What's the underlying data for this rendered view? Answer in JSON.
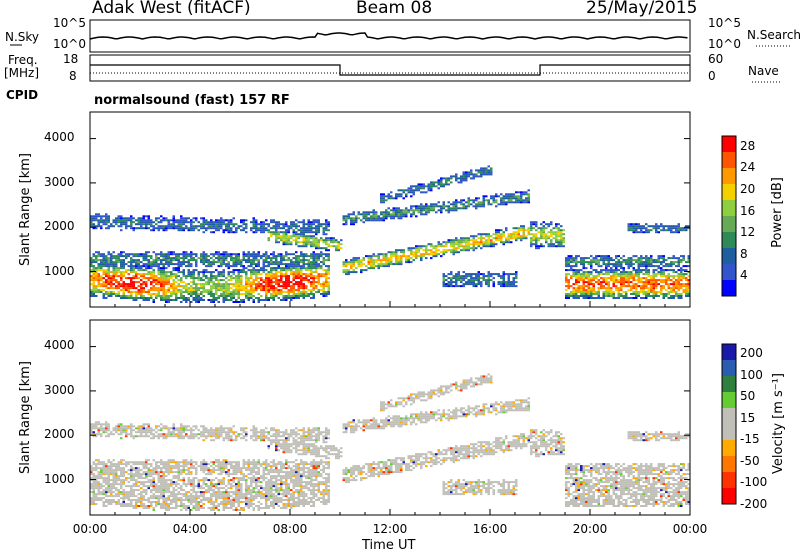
{
  "header": {
    "station": "Adak West (fitACF)",
    "beam": "Beam 08",
    "date": "25/May/2015"
  },
  "top_panels": {
    "nsky_label": "N.Sky",
    "nsky_ticks": [
      "10^5",
      "10^0"
    ],
    "nsearch_label": "N.Search",
    "nsearch_ticks": [
      "10^5",
      "10^0"
    ],
    "freq_label": "Freq.",
    "freq_unit": "[MHz]",
    "freq_ticks": [
      "18",
      "8"
    ],
    "nave_label": "Nave",
    "nave_ticks": [
      "60",
      "0"
    ],
    "cpid_label": "CPID",
    "cpid_text": "normalsound (fast) 157 RF"
  },
  "colors": {
    "power": [
      "#0000ff",
      "#3355cc",
      "#1f5fa0",
      "#2e8b57",
      "#66aa55",
      "#8fcf3f",
      "#f5d000",
      "#ff9900",
      "#ff5500",
      "#ff0000"
    ],
    "velocity": [
      "#1a1aa8",
      "#2a5db0",
      "#2f7f3f",
      "#66cc33",
      "#c0c0b8",
      "#c0c0b8",
      "#ffaa00",
      "#ff7700",
      "#ff3300",
      "#ff0000"
    ]
  },
  "chart_data": [
    {
      "type": "heatmap",
      "name": "power",
      "ylabel": "Slant Range [km]",
      "yticks": [
        "1000",
        "2000",
        "3000",
        "4000"
      ],
      "ylim": [
        200,
        4600
      ],
      "xlim_hours": [
        0,
        24
      ],
      "colorbar_label": "Power [dB]",
      "colorbar_ticks": [
        "4",
        "8",
        "12",
        "16",
        "20",
        "24",
        "28"
      ],
      "colorbar_range": [
        0,
        30
      ]
    },
    {
      "type": "heatmap",
      "name": "velocity",
      "ylabel": "Slant Range [km]",
      "yticks": [
        "1000",
        "2000",
        "3000",
        "4000"
      ],
      "ylim": [
        200,
        4600
      ],
      "xlim_hours": [
        0,
        24
      ],
      "colorbar_label": "Velocity [m s⁻¹]",
      "colorbar_ticks": [
        "200",
        "100",
        "50",
        "15",
        "-15",
        "-50",
        "-100",
        "-200"
      ]
    }
  ],
  "x_axis": {
    "label": "Time UT",
    "ticks": [
      "00:00",
      "04:00",
      "08:00",
      "12:00",
      "16:00",
      "20:00",
      "00:00"
    ]
  }
}
